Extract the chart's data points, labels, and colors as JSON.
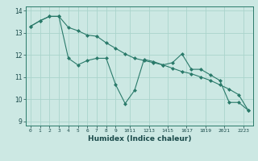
{
  "xlabel": "Humidex (Indice chaleur)",
  "ylabel": "",
  "background_color": "#cce8e3",
  "grid_color": "#aad4cc",
  "line_color": "#2a7a6a",
  "marker_color": "#2a7a6a",
  "xlim": [
    -0.5,
    23.5
  ],
  "ylim": [
    8.8,
    14.2
  ],
  "yticks": [
    9,
    10,
    11,
    12,
    13,
    14
  ],
  "xtick_labels": [
    "0",
    "1",
    "2",
    "3",
    "4",
    "5",
    "6",
    "7",
    "8",
    "9",
    "1011",
    "1213",
    "1415",
    "1617",
    "1819",
    "2021",
    "2223"
  ],
  "xtick_positions": [
    0,
    1,
    2,
    3,
    4,
    5,
    6,
    7,
    8,
    9,
    10.5,
    12.5,
    14.5,
    16.5,
    18.5,
    20.5,
    22.5
  ],
  "series1_x": [
    0,
    1,
    2,
    3,
    4,
    5,
    6,
    7,
    8,
    9,
    10,
    11,
    12,
    13,
    14,
    15,
    16,
    17,
    18,
    19,
    20,
    21,
    22,
    23
  ],
  "series1_y": [
    13.3,
    13.55,
    13.75,
    13.75,
    13.25,
    13.1,
    12.9,
    12.85,
    12.55,
    12.3,
    12.05,
    11.85,
    11.75,
    11.65,
    11.55,
    11.4,
    11.25,
    11.15,
    11.0,
    10.85,
    10.65,
    10.45,
    10.2,
    9.5
  ],
  "series2_x": [
    0,
    1,
    2,
    3,
    4,
    5,
    6,
    7,
    8,
    9,
    10,
    11,
    12,
    13,
    14,
    15,
    16,
    17,
    18,
    19,
    20,
    21,
    22,
    23
  ],
  "series2_y": [
    13.3,
    13.55,
    13.75,
    13.75,
    11.85,
    11.55,
    11.75,
    11.85,
    11.85,
    10.65,
    9.8,
    10.4,
    11.8,
    11.7,
    11.55,
    11.65,
    12.05,
    11.35,
    11.35,
    11.1,
    10.85,
    9.85,
    9.85,
    9.5
  ]
}
